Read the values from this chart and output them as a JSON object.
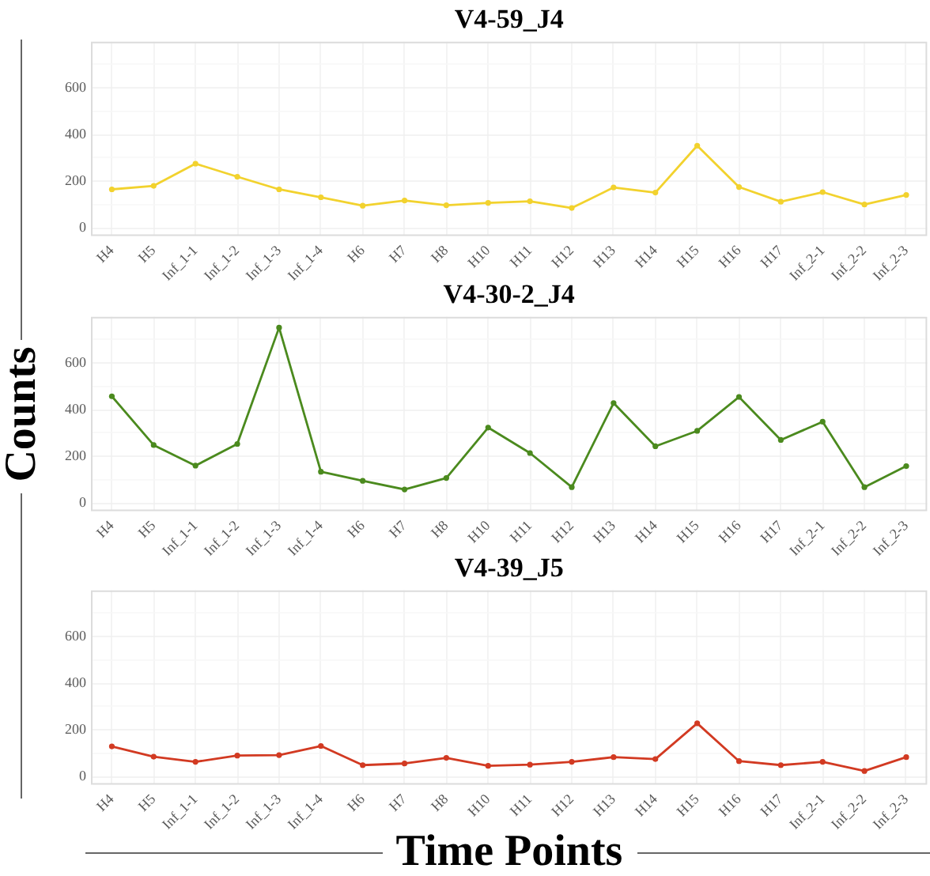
{
  "chart_data": [
    {
      "type": "line",
      "title": "V4-59_J4",
      "categories": [
        "H4",
        "H5",
        "Inf_1-1",
        "Inf_1-2",
        "Inf_1-3",
        "Inf_1-4",
        "H6",
        "H7",
        "H8",
        "H10",
        "H11",
        "H12",
        "H13",
        "H14",
        "H15",
        "H16",
        "H17",
        "Inf_2-1",
        "Inf_2-2",
        "Inf_2-3"
      ],
      "values": [
        165,
        180,
        275,
        219,
        165,
        131,
        95,
        117,
        97,
        107,
        114,
        85,
        173,
        151,
        352,
        175,
        112,
        153,
        100,
        141
      ],
      "color": "#f2d22e",
      "ylim": [
        -35,
        797
      ],
      "yticks": [
        0,
        {
          "value": 100,
          "label": null
        },
        200,
        {
          "value": 300,
          "label": null
        },
        400,
        {
          "value": 500,
          "label": null
        },
        600,
        {
          "value": 700,
          "label": null
        }
      ],
      "grid": true,
      "marker": "circle"
    },
    {
      "type": "line",
      "title": "V4-30-2_J4",
      "ylabel": "Counts",
      "categories": [
        "H4",
        "H5",
        "Inf_1-1",
        "Inf_1-2",
        "Inf_1-3",
        "Inf_1-4",
        "H6",
        "H7",
        "H8",
        "H10",
        "H11",
        "H12",
        "H13",
        "H14",
        "H15",
        "H16",
        "H17",
        "Inf_2-1",
        "Inf_2-2",
        "Inf_2-3"
      ],
      "values": [
        457,
        248,
        160,
        253,
        751,
        134,
        95,
        58,
        107,
        323,
        214,
        68,
        428,
        243,
        309,
        454,
        270,
        348,
        68,
        158
      ],
      "color": "#4b8a1e",
      "ylim": [
        -35,
        797
      ],
      "yticks": [
        0,
        {
          "value": 100,
          "label": null
        },
        200,
        {
          "value": 300,
          "label": null
        },
        400,
        {
          "value": 500,
          "label": null
        },
        600,
        {
          "value": 700,
          "label": null
        }
      ],
      "grid": true,
      "marker": "circle"
    },
    {
      "type": "line",
      "title": "V4-39_J5",
      "xlabel": "Time Points",
      "categories": [
        "H4",
        "H5",
        "Inf_1-1",
        "Inf_1-2",
        "Inf_1-3",
        "Inf_1-4",
        "H6",
        "H7",
        "H8",
        "H10",
        "H11",
        "H12",
        "H13",
        "H14",
        "H15",
        "H16",
        "H17",
        "Inf_2-1",
        "Inf_2-2",
        "Inf_2-3"
      ],
      "values": [
        129,
        85,
        63,
        90,
        92,
        131,
        49,
        56,
        80,
        46,
        51,
        63,
        83,
        75,
        228,
        66,
        49,
        63,
        24,
        83
      ],
      "color": "#d23a22",
      "ylim": [
        -35,
        797
      ],
      "yticks": [
        0,
        {
          "value": 100,
          "label": null
        },
        200,
        {
          "value": 300,
          "label": null
        },
        400,
        {
          "value": 500,
          "label": null
        },
        600,
        {
          "value": 700,
          "label": null
        }
      ],
      "grid": true,
      "marker": "circle"
    }
  ]
}
